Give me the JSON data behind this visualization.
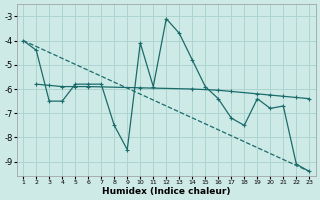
{
  "xlabel": "Humidex (Indice chaleur)",
  "background_color": "#ceeae6",
  "grid_color": "#aed4d0",
  "line_color": "#1a6b6b",
  "xlim": [
    0.5,
    23.5
  ],
  "ylim": [
    -9.6,
    -2.5
  ],
  "yticks": [
    -9,
    -8,
    -7,
    -6,
    -5,
    -4,
    -3
  ],
  "xticks": [
    1,
    2,
    3,
    4,
    5,
    6,
    7,
    8,
    9,
    10,
    11,
    12,
    13,
    14,
    15,
    16,
    17,
    18,
    19,
    20,
    21,
    22,
    23
  ],
  "xtick_labels": [
    "1",
    "2",
    "3",
    "4",
    "5",
    "6",
    "7",
    "8",
    "9",
    "10",
    "11",
    "12",
    "13",
    "14",
    "15",
    "16",
    "17",
    "18",
    "19",
    "20",
    "21",
    "22",
    "23"
  ],
  "line1_x": [
    1,
    2,
    3,
    4,
    5,
    6,
    7,
    8,
    9,
    10,
    11,
    12,
    13,
    14,
    15,
    16,
    17,
    18,
    19,
    20,
    21,
    22,
    23
  ],
  "line1_y": [
    -4.0,
    -4.4,
    -6.5,
    -6.5,
    -5.8,
    -5.8,
    -5.8,
    -7.5,
    -8.5,
    -4.1,
    -5.9,
    -3.1,
    -3.7,
    -4.8,
    -5.9,
    -6.4,
    -7.2,
    -7.5,
    -6.4,
    -6.8,
    -6.7,
    -9.1,
    -9.4
  ],
  "line2_x": [
    2,
    3,
    4,
    5,
    6,
    10,
    14,
    16,
    17,
    19,
    20,
    21,
    22,
    23
  ],
  "line2_y": [
    -5.8,
    -5.85,
    -5.9,
    -5.9,
    -5.9,
    -5.95,
    -6.0,
    -6.05,
    -6.1,
    -6.2,
    -6.25,
    -6.3,
    -6.35,
    -6.4
  ],
  "line3_x": [
    1,
    23
  ],
  "line3_y": [
    -4.0,
    -9.4
  ]
}
